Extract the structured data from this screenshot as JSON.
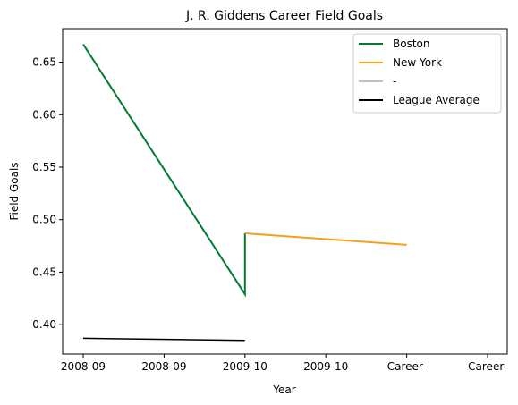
{
  "chart_data": {
    "type": "line",
    "title": "J. R. Giddens Career Field Goals",
    "xlabel": "Year",
    "ylabel": "Field Goals",
    "x_tick_labels": [
      "2008-09",
      "2008-09",
      "2009-10",
      "2009-10",
      "Career-",
      "Career-"
    ],
    "ylim": [
      0.372,
      0.682
    ],
    "y_ticks": [
      0.4,
      0.45,
      0.5,
      0.55,
      0.6,
      0.65
    ],
    "y_tick_labels": [
      "0.40",
      "0.45",
      "0.50",
      "0.55",
      "0.60",
      "0.65"
    ],
    "grid": false,
    "legend_position": "top-right",
    "series": [
      {
        "name": "Boston",
        "color": "#007A33",
        "points": [
          {
            "x": 0,
            "y": 0.667
          },
          {
            "x": 2,
            "y": 0.429
          },
          {
            "x": 2,
            "y": 0.487
          }
        ]
      },
      {
        "name": "New York",
        "color": "#F5A01A",
        "points": [
          {
            "x": 2,
            "y": 0.487
          },
          {
            "x": 4,
            "y": 0.476
          }
        ]
      },
      {
        "name": "-",
        "color": "#C0C0C0",
        "points": []
      },
      {
        "name": "League Average",
        "color": "#000000",
        "points": [
          {
            "x": 0,
            "y": 0.387
          },
          {
            "x": 2,
            "y": 0.385
          }
        ]
      }
    ]
  }
}
